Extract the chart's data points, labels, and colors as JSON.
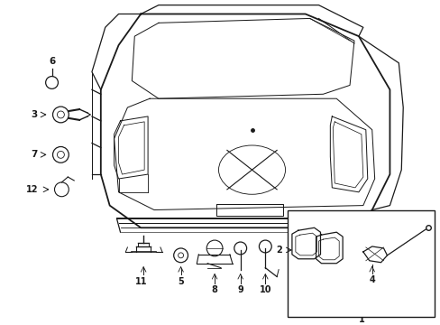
{
  "background_color": "#ffffff",
  "fig_width": 4.89,
  "fig_height": 3.6,
  "dpi": 100,
  "lc": "#1a1a1a",
  "lw": 0.9
}
